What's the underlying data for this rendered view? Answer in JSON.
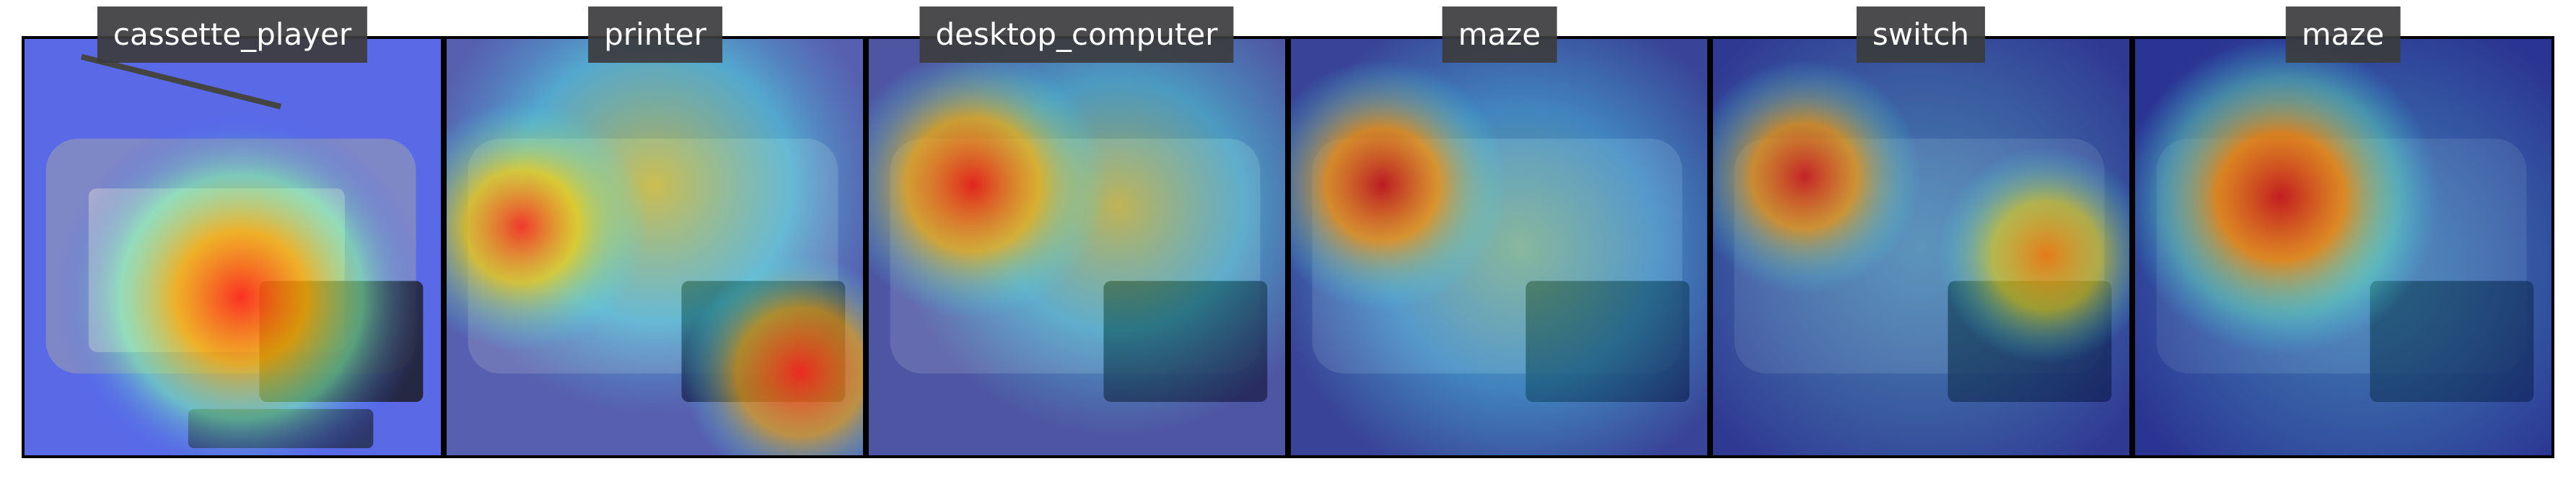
{
  "figure": {
    "description_free": true,
    "panels": [
      {
        "label": "cassette_player"
      },
      {
        "label": "printer"
      },
      {
        "label": "desktop_computer"
      },
      {
        "label": "maze"
      },
      {
        "label": "switch"
      },
      {
        "label": "maze"
      }
    ]
  }
}
